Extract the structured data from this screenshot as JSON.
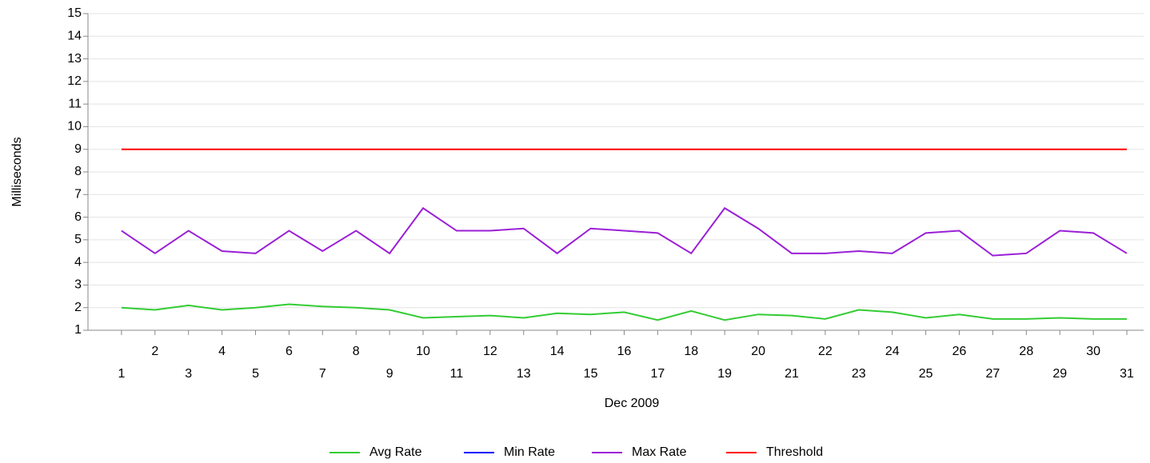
{
  "chart_data": {
    "type": "line",
    "x_label": "Dec 2009",
    "y_label": "Milliseconds",
    "x": [
      1,
      2,
      3,
      4,
      5,
      6,
      7,
      8,
      9,
      10,
      11,
      12,
      13,
      14,
      15,
      16,
      17,
      18,
      19,
      20,
      21,
      22,
      23,
      24,
      25,
      26,
      27,
      28,
      29,
      30,
      31
    ],
    "xlim": [
      0,
      31.5
    ],
    "ylim": [
      1,
      15
    ],
    "yticks": [
      1,
      2,
      3,
      4,
      5,
      6,
      7,
      8,
      9,
      10,
      11,
      12,
      13,
      14,
      15
    ],
    "grid": true,
    "legend": "bottom",
    "series": [
      {
        "name": "Avg Rate",
        "color": "#33cc33",
        "values": [
          2.0,
          1.9,
          2.1,
          1.9,
          2.0,
          2.15,
          2.05,
          2.0,
          1.9,
          1.55,
          1.6,
          1.65,
          1.55,
          1.75,
          1.7,
          1.8,
          1.45,
          1.85,
          1.45,
          1.7,
          1.65,
          1.5,
          1.9,
          1.8,
          1.55,
          1.7,
          1.5,
          1.5,
          1.55,
          1.5,
          1.5
        ]
      },
      {
        "name": "Min Rate",
        "color": "#0000ff",
        "values": [
          null,
          null,
          null,
          null,
          null,
          null,
          null,
          null,
          null,
          null,
          null,
          null,
          null,
          null,
          null,
          null,
          null,
          null,
          null,
          null,
          null,
          null,
          null,
          null,
          null,
          null,
          null,
          null,
          null,
          null,
          null
        ]
      },
      {
        "name": "Max Rate",
        "color": "#9b1fd6",
        "values": [
          5.4,
          4.4,
          5.4,
          4.5,
          4.4,
          5.4,
          4.5,
          5.4,
          4.4,
          6.4,
          5.4,
          5.4,
          5.5,
          4.4,
          5.5,
          5.4,
          5.3,
          4.4,
          6.4,
          5.5,
          4.4,
          4.4,
          4.5,
          4.4,
          5.3,
          5.4,
          4.3,
          4.4,
          5.4,
          5.3,
          4.4
        ]
      },
      {
        "name": "Threshold",
        "color": "#ff0000",
        "values": [
          9,
          9,
          9,
          9,
          9,
          9,
          9,
          9,
          9,
          9,
          9,
          9,
          9,
          9,
          9,
          9,
          9,
          9,
          9,
          9,
          9,
          9,
          9,
          9,
          9,
          9,
          9,
          9,
          9,
          9,
          9
        ]
      }
    ]
  }
}
